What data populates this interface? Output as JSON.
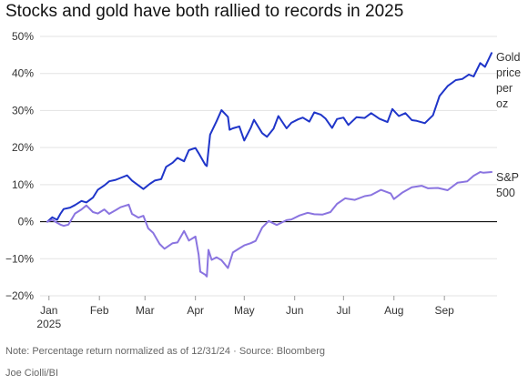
{
  "chart_data": {
    "type": "line",
    "title": "Stocks and gold have both rallied to records in 2025",
    "xlabel": "",
    "ylabel": "",
    "x_ticks": [
      "Jan",
      "Feb",
      "Mar",
      "Apr",
      "May",
      "Jun",
      "Jul",
      "Aug",
      "Sep"
    ],
    "x_tick_year": "2025",
    "y_ticks": [
      "50%",
      "40%",
      "30%",
      "20%",
      "10%",
      "0%",
      "−10%",
      "−20%"
    ],
    "ylim": [
      -20,
      50
    ],
    "xlim": [
      "2024-12-31",
      "2025-09-30"
    ],
    "grid": "horizontal",
    "zero_line": true,
    "series": [
      {
        "name": "Gold price per oz",
        "label_lines": [
          "Gold",
          "price",
          "per",
          "oz"
        ],
        "color": "#1f35c9",
        "x": [
          "2024-12-31",
          "2025-01-03",
          "2025-01-06",
          "2025-01-08",
          "2025-01-10",
          "2025-01-14",
          "2025-01-17",
          "2025-01-21",
          "2025-01-24",
          "2025-01-28",
          "2025-01-31",
          "2025-02-04",
          "2025-02-07",
          "2025-02-11",
          "2025-02-14",
          "2025-02-18",
          "2025-02-21",
          "2025-02-25",
          "2025-02-28",
          "2025-03-04",
          "2025-03-07",
          "2025-03-11",
          "2025-03-14",
          "2025-03-18",
          "2025-03-21",
          "2025-03-25",
          "2025-03-28",
          "2025-04-01",
          "2025-04-03",
          "2025-04-07",
          "2025-04-08",
          "2025-04-10",
          "2025-04-14",
          "2025-04-17",
          "2025-04-21",
          "2025-04-22",
          "2025-04-24",
          "2025-04-28",
          "2025-05-01",
          "2025-05-05",
          "2025-05-07",
          "2025-05-12",
          "2025-05-15",
          "2025-05-19",
          "2025-05-22",
          "2025-05-27",
          "2025-05-30",
          "2025-06-03",
          "2025-06-06",
          "2025-06-10",
          "2025-06-13",
          "2025-06-17",
          "2025-06-20",
          "2025-06-24",
          "2025-06-27",
          "2025-07-01",
          "2025-07-04",
          "2025-07-09",
          "2025-07-14",
          "2025-07-18",
          "2025-07-23",
          "2025-07-28",
          "2025-07-31",
          "2025-08-04",
          "2025-08-08",
          "2025-08-12",
          "2025-08-15",
          "2025-08-20",
          "2025-08-25",
          "2025-08-29",
          "2025-09-03",
          "2025-09-08",
          "2025-09-12",
          "2025-09-16",
          "2025-09-19",
          "2025-09-23",
          "2025-09-26",
          "2025-09-30"
        ],
        "values": [
          0,
          1.2,
          0.5,
          2.1,
          3.4,
          3.8,
          4.5,
          5.6,
          5.2,
          6.5,
          8.6,
          9.8,
          10.9,
          11.3,
          11.8,
          12.5,
          11.1,
          9.8,
          8.8,
          10.2,
          11.1,
          11.5,
          14.8,
          15.9,
          17.2,
          16.3,
          19.3,
          19.9,
          18.5,
          15.4,
          15.0,
          23.5,
          27.1,
          30.1,
          28.3,
          24.8,
          25.2,
          25.7,
          21.9,
          25.3,
          27.5,
          23.9,
          22.9,
          25.1,
          28.5,
          25.2,
          26.7,
          27.6,
          28.1,
          27.0,
          29.5,
          28.9,
          27.8,
          25.3,
          27.7,
          28.1,
          26.1,
          28.2,
          28.0,
          29.3,
          27.8,
          26.9,
          30.4,
          28.5,
          29.3,
          27.4,
          27.2,
          26.6,
          28.7,
          33.9,
          36.6,
          38.2,
          38.5,
          39.7,
          39.2,
          42.8,
          41.8,
          45.5
        ]
      },
      {
        "name": "S&P 500",
        "label_lines": [
          "S&P",
          "500"
        ],
        "color": "#8a74e0",
        "x": [
          "2024-12-31",
          "2025-01-03",
          "2025-01-06",
          "2025-01-08",
          "2025-01-10",
          "2025-01-13",
          "2025-01-17",
          "2025-01-21",
          "2025-01-24",
          "2025-01-28",
          "2025-01-31",
          "2025-02-04",
          "2025-02-07",
          "2025-02-11",
          "2025-02-14",
          "2025-02-19",
          "2025-02-21",
          "2025-02-25",
          "2025-02-28",
          "2025-03-03",
          "2025-03-06",
          "2025-03-10",
          "2025-03-13",
          "2025-03-18",
          "2025-03-21",
          "2025-03-25",
          "2025-03-28",
          "2025-04-01",
          "2025-04-03",
          "2025-04-04",
          "2025-04-07",
          "2025-04-08",
          "2025-04-09",
          "2025-04-11",
          "2025-04-14",
          "2025-04-17",
          "2025-04-21",
          "2025-04-24",
          "2025-04-28",
          "2025-05-01",
          "2025-05-05",
          "2025-05-08",
          "2025-05-12",
          "2025-05-16",
          "2025-05-21",
          "2025-05-27",
          "2025-05-30",
          "2025-06-04",
          "2025-06-09",
          "2025-06-13",
          "2025-06-18",
          "2025-06-23",
          "2025-06-27",
          "2025-07-02",
          "2025-07-08",
          "2025-07-14",
          "2025-07-18",
          "2025-07-24",
          "2025-07-30",
          "2025-08-01",
          "2025-08-06",
          "2025-08-12",
          "2025-08-18",
          "2025-08-22",
          "2025-08-28",
          "2025-09-03",
          "2025-09-09",
          "2025-09-15",
          "2025-09-19",
          "2025-09-23",
          "2025-09-25",
          "2025-09-30"
        ],
        "values": [
          0,
          0.5,
          -0.3,
          -0.8,
          -1.1,
          -0.8,
          2.2,
          3.3,
          4.4,
          2.6,
          2.2,
          3.3,
          2.1,
          3.1,
          3.9,
          4.6,
          2.1,
          1.1,
          1.6,
          -1.8,
          -3.0,
          -6.0,
          -7.3,
          -5.8,
          -5.6,
          -2.5,
          -5.1,
          -4.0,
          -8.9,
          -13.5,
          -14.3,
          -14.8,
          -7.6,
          -10.3,
          -9.6,
          -10.4,
          -12.5,
          -8.3,
          -7.2,
          -6.4,
          -5.8,
          -5.2,
          -1.6,
          0.2,
          -0.9,
          0.4,
          0.6,
          1.7,
          2.4,
          2.0,
          1.9,
          2.6,
          4.8,
          6.3,
          5.9,
          6.9,
          7.2,
          8.6,
          7.6,
          6.1,
          7.8,
          9.3,
          9.7,
          9.0,
          9.1,
          8.5,
          10.5,
          10.9,
          12.4,
          13.4,
          13.2,
          13.4
        ]
      }
    ]
  },
  "footer": {
    "note": "Note: Percentage return normalized as of 12/31/24 · Source: Bloomberg",
    "credit": "Joe Ciolli/BI"
  }
}
